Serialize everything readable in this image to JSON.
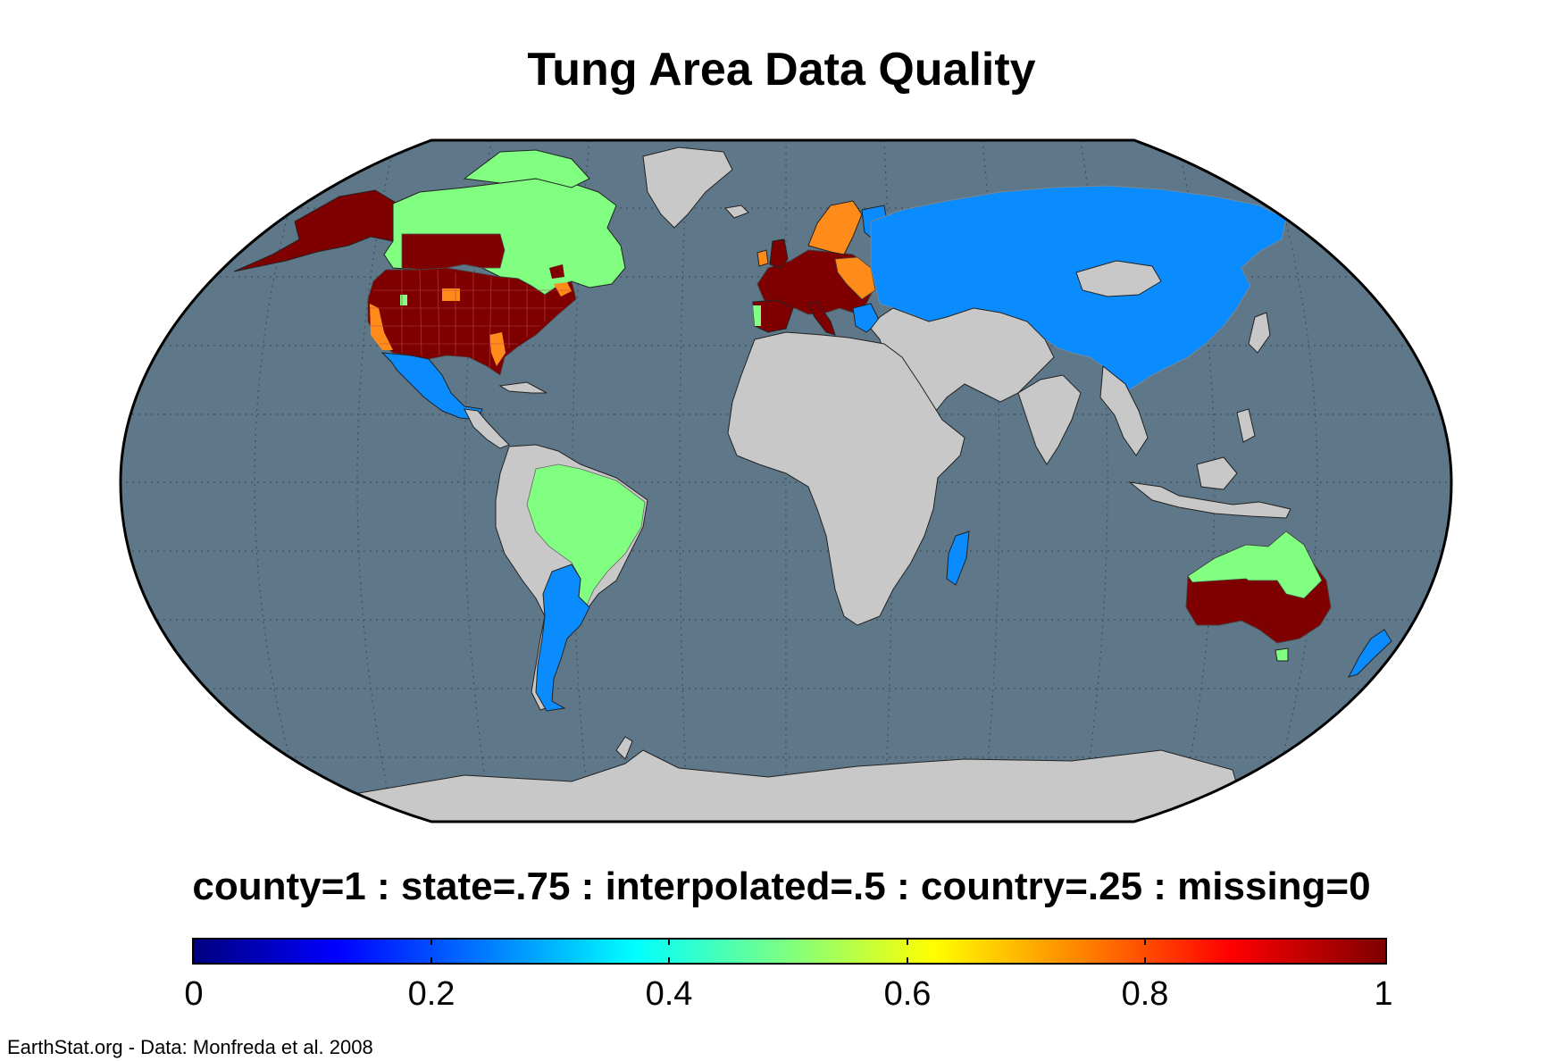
{
  "title": "Tung Area Data Quality",
  "legend": {
    "title": "county=1 : state=.75 : interpolated=.5 : country=.25 : missing=0",
    "ticks": [
      "0",
      "0.2",
      "0.4",
      "0.6",
      "0.8",
      "1"
    ],
    "range": [
      0,
      1
    ],
    "colormap": "jet"
  },
  "credit": "EarthStat.org - Data: Monfreda et al. 2008",
  "colors": {
    "ocean": "#5e7889",
    "no_data_land": "#c8c8c8",
    "county": "#7f0000",
    "state": "#ff8c1a",
    "interpolated": "#80ff80",
    "country": "#0a8cff"
  },
  "regions": [
    {
      "name": "United States",
      "quality": "county"
    },
    {
      "name": "Canada",
      "quality": "interpolated"
    },
    {
      "name": "Mexico",
      "quality": "country"
    },
    {
      "name": "Brazil",
      "quality": "interpolated"
    },
    {
      "name": "Argentina",
      "quality": "country"
    },
    {
      "name": "Europe",
      "quality": "county"
    },
    {
      "name": "Russia and Asia",
      "quality": "country"
    },
    {
      "name": "Australia",
      "quality": "county"
    },
    {
      "name": "New Zealand",
      "quality": "country"
    },
    {
      "name": "Madagascar",
      "quality": "country"
    }
  ]
}
